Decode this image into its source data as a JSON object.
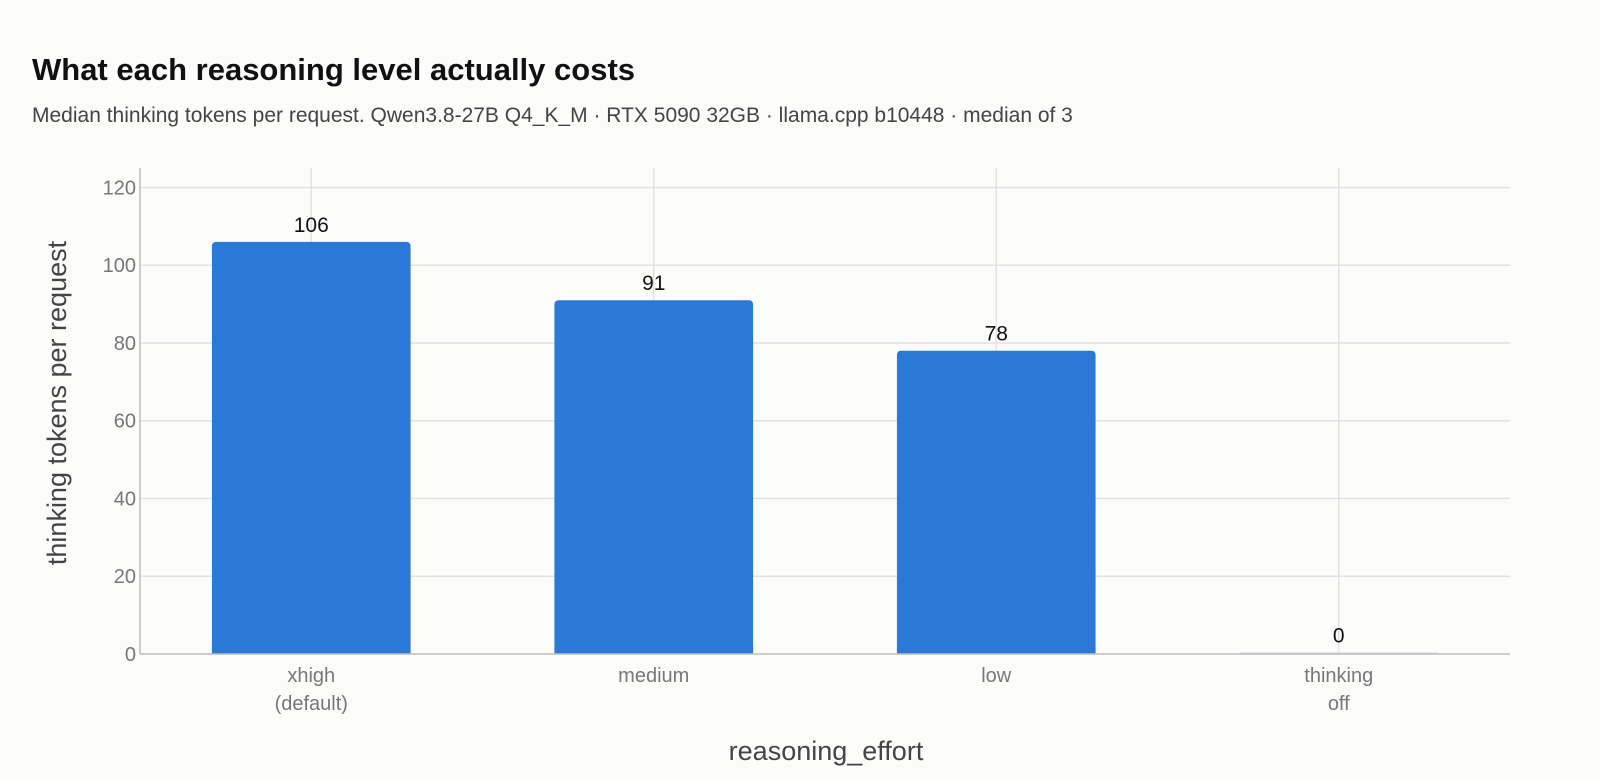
{
  "chart_data": {
    "type": "bar",
    "title": "What each reasoning level actually costs",
    "subtitle": "Median thinking tokens per request. Qwen3.8-27B Q4_K_M · RTX 5090 32GB · llama.cpp b10448 · median of 3",
    "xlabel": "reasoning_effort",
    "ylabel": "thinking tokens per request",
    "categories": [
      [
        "xhigh",
        "(default)"
      ],
      [
        "medium"
      ],
      [
        "low"
      ],
      [
        "thinking",
        "off"
      ]
    ],
    "values": [
      106,
      91,
      78,
      0
    ],
    "data_labels": [
      "106",
      "91",
      "78",
      "0"
    ],
    "ylim": [
      0,
      125
    ],
    "yticks": [
      0,
      20,
      40,
      60,
      80,
      100,
      120
    ],
    "ytick_labels": [
      "0",
      "20",
      "40",
      "60",
      "80",
      "100",
      "120"
    ],
    "grid": true,
    "legend": "none",
    "colors": {
      "bar": "#2b79d6",
      "grid": "#e2e2e2",
      "axis": "#bdbdbd"
    }
  }
}
